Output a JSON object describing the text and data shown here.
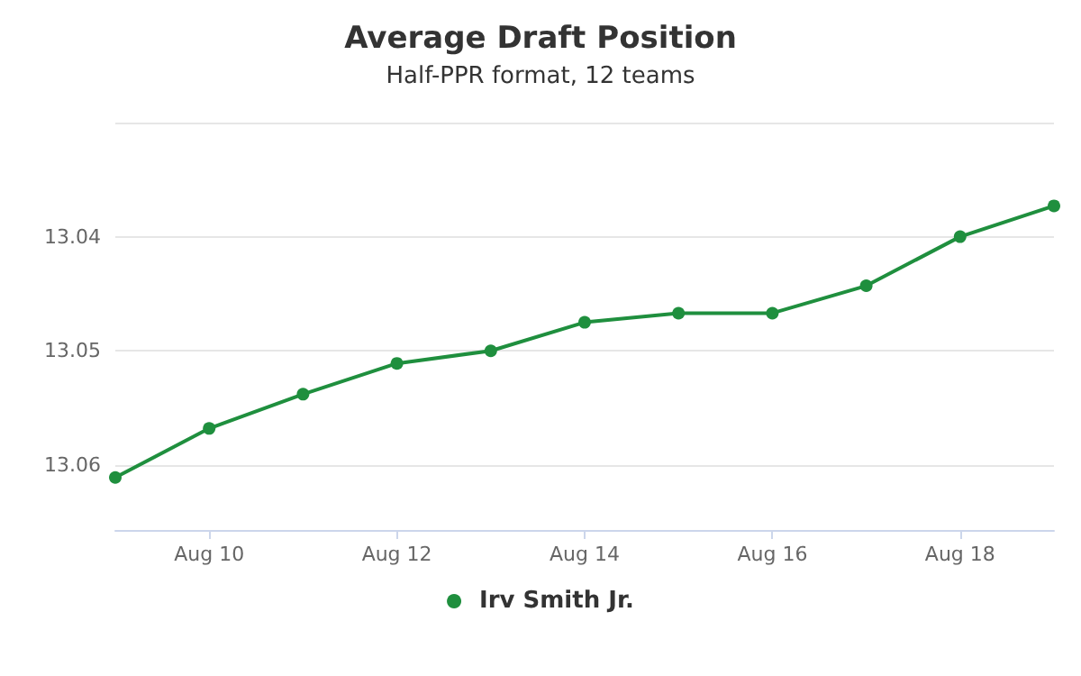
{
  "chart_data": {
    "type": "line",
    "title": "Average Draft Position",
    "subtitle": "Half-PPR format, 12 teams",
    "x": [
      "--08-09",
      "--08-10",
      "--08-11",
      "--08-12",
      "--08-13",
      "--08-14",
      "--08-15",
      "--08-16",
      "--08-17",
      "--08-18",
      "--08-19"
    ],
    "series": [
      {
        "name": "Irv Smith Jr.",
        "color": "#1f8f3e",
        "values": [
          13.0611,
          13.0568,
          13.0538,
          13.0511,
          13.05,
          13.0475,
          13.0467,
          13.0467,
          13.0443,
          13.04,
          13.0373
        ]
      }
    ],
    "xlim": [
      "--08-09",
      "--08-19"
    ],
    "xticks": [
      {
        "value": "--08-10",
        "label": "Aug 10"
      },
      {
        "value": "--08-12",
        "label": "Aug 12"
      },
      {
        "value": "--08-14",
        "label": "Aug 14"
      },
      {
        "value": "--08-16",
        "label": "Aug 16"
      },
      {
        "value": "--08-18",
        "label": "Aug 18"
      }
    ],
    "ylim": [
      13.0657,
      13.03
    ],
    "yticks": [
      {
        "value": 13.03,
        "label": null
      },
      13.04,
      13.05,
      13.06
    ],
    "grid": "y",
    "legend": "bottom",
    "marker": "circle",
    "line_style": "solid"
  }
}
